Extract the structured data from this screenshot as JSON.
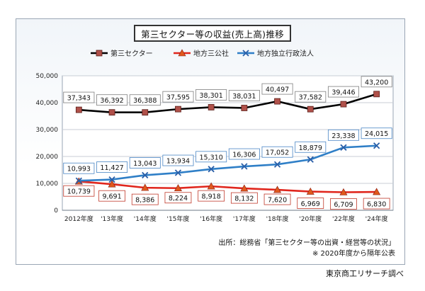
{
  "chart_data": {
    "type": "line",
    "title": "第三セクター等の収益(売上高)推移",
    "categories": [
      "2012年度",
      "'13年度",
      "'14年度",
      "'15年度",
      "'16年度",
      "'17年度",
      "'18年度",
      "'20年度",
      "'22年度",
      "'24年度"
    ],
    "y_ticks": [
      "0",
      "10,000",
      "20,000",
      "30,000",
      "40,000",
      "50,000"
    ],
    "ylim": [
      0,
      50000
    ],
    "legend_position": "top",
    "grid": true,
    "series": [
      {
        "name": "第三セクター",
        "color": "#000000",
        "marker": "square",
        "marker_color": "#b0514a",
        "values": [
          37343,
          36392,
          36388,
          37595,
          38301,
          38031,
          40497,
          37582,
          39446,
          43200
        ],
        "labels": [
          "37,343",
          "36,392",
          "36,388",
          "37,595",
          "38,301",
          "38,031",
          "40,497",
          "37,582",
          "39,446",
          "43,200"
        ]
      },
      {
        "name": "地方三公社",
        "color": "#e0261d",
        "marker": "triangle",
        "marker_color": "#e0591d",
        "values": [
          10739,
          9691,
          8386,
          8224,
          8918,
          8132,
          7620,
          6969,
          6709,
          6830
        ],
        "labels": [
          "10,739",
          "9,691",
          "8,386",
          "8,224",
          "8,918",
          "8,132",
          "7,620",
          "6,969",
          "6,709",
          "6,830"
        ]
      },
      {
        "name": "地方独立行政法人",
        "color": "#2f7fc7",
        "marker": "x",
        "marker_color": "#2a5fa8",
        "values": [
          10993,
          11427,
          13043,
          13934,
          15310,
          16306,
          17052,
          18879,
          23338,
          24015
        ],
        "labels": [
          "10,993",
          "11,427",
          "13,043",
          "13,934",
          "15,310",
          "16,306",
          "17,052",
          "18,879",
          "23,338",
          "24,015"
        ]
      }
    ]
  },
  "source_line_1": "出所：総務省「第三セクター等の出資・経営等の状況」",
  "source_line_2": "※ 2020年度から隔年公表",
  "credit": "東京商工リサーチ調べ"
}
